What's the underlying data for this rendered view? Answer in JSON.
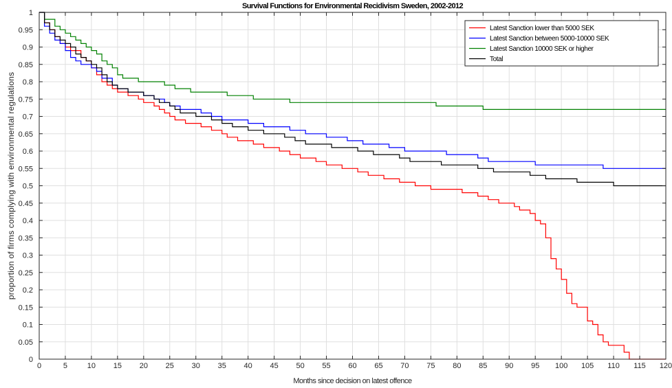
{
  "chart_data": {
    "type": "line",
    "title": "Survival Functions for Environmental Recidivism Sweden, 2002-2012",
    "xlabel": "Months since decision on latest offence",
    "ylabel": "proportion of firms complying with environmental regulations",
    "xlim": [
      0,
      120
    ],
    "ylim": [
      0,
      1
    ],
    "xticks": [
      "0",
      "5",
      "10",
      "15",
      "20",
      "25",
      "30",
      "35",
      "40",
      "45",
      "50",
      "55",
      "60",
      "65",
      "70",
      "75",
      "80",
      "85",
      "90",
      "95",
      "100",
      "105",
      "110",
      "115",
      "120"
    ],
    "yticks": [
      "0",
      "0.05",
      "0.1",
      "0.15",
      "0.2",
      "0.25",
      "0.3",
      "0.35",
      "0.4",
      "0.45",
      "0.5",
      "0.55",
      "0.6",
      "0.65",
      "0.7",
      "0.75",
      "0.8",
      "0.85",
      "0.9",
      "0.95",
      "1"
    ],
    "grid": true,
    "legend_position": "top-right",
    "series": [
      {
        "name": "Latest Sanction lower than 5000 SEK",
        "color": "#ff0000",
        "step": true,
        "points": [
          [
            0,
            1
          ],
          [
            1,
            0.97
          ],
          [
            2,
            0.95
          ],
          [
            3,
            0.93
          ],
          [
            4,
            0.91
          ],
          [
            5,
            0.9
          ],
          [
            6,
            0.89
          ],
          [
            8,
            0.87
          ],
          [
            9,
            0.86
          ],
          [
            10,
            0.84
          ],
          [
            11,
            0.82
          ],
          [
            12,
            0.8
          ],
          [
            13,
            0.79
          ],
          [
            14,
            0.78
          ],
          [
            15,
            0.77
          ],
          [
            17,
            0.76
          ],
          [
            19,
            0.75
          ],
          [
            20,
            0.74
          ],
          [
            22,
            0.73
          ],
          [
            23,
            0.72
          ],
          [
            24,
            0.71
          ],
          [
            25,
            0.7
          ],
          [
            26,
            0.69
          ],
          [
            28,
            0.68
          ],
          [
            31,
            0.67
          ],
          [
            33,
            0.66
          ],
          [
            35,
            0.65
          ],
          [
            36,
            0.64
          ],
          [
            38,
            0.63
          ],
          [
            41,
            0.62
          ],
          [
            43,
            0.61
          ],
          [
            46,
            0.6
          ],
          [
            48,
            0.59
          ],
          [
            50,
            0.58
          ],
          [
            53,
            0.57
          ],
          [
            55,
            0.56
          ],
          [
            58,
            0.55
          ],
          [
            61,
            0.54
          ],
          [
            63,
            0.53
          ],
          [
            66,
            0.52
          ],
          [
            69,
            0.51
          ],
          [
            72,
            0.5
          ],
          [
            75,
            0.49
          ],
          [
            81,
            0.48
          ],
          [
            84,
            0.47
          ],
          [
            86,
            0.46
          ],
          [
            88,
            0.45
          ],
          [
            91,
            0.44
          ],
          [
            92,
            0.43
          ],
          [
            94,
            0.42
          ],
          [
            95,
            0.4
          ],
          [
            96,
            0.39
          ],
          [
            97,
            0.35
          ],
          [
            98,
            0.29
          ],
          [
            99,
            0.26
          ],
          [
            100,
            0.23
          ],
          [
            101,
            0.19
          ],
          [
            102,
            0.16
          ],
          [
            103,
            0.15
          ],
          [
            105,
            0.11
          ],
          [
            106,
            0.1
          ],
          [
            107,
            0.07
          ],
          [
            108,
            0.05
          ],
          [
            109,
            0.04
          ],
          [
            112,
            0.02
          ],
          [
            113,
            0
          ],
          [
            120,
            0
          ]
        ]
      },
      {
        "name": "Latest Sanction between 5000-10000 SEK",
        "color": "#0000ff",
        "step": true,
        "points": [
          [
            0,
            1
          ],
          [
            1,
            0.96
          ],
          [
            2,
            0.94
          ],
          [
            3,
            0.92
          ],
          [
            4,
            0.91
          ],
          [
            5,
            0.89
          ],
          [
            6,
            0.87
          ],
          [
            7,
            0.86
          ],
          [
            8,
            0.85
          ],
          [
            10,
            0.84
          ],
          [
            11,
            0.83
          ],
          [
            12,
            0.81
          ],
          [
            14,
            0.79
          ],
          [
            15,
            0.78
          ],
          [
            17,
            0.77
          ],
          [
            20,
            0.76
          ],
          [
            22,
            0.75
          ],
          [
            24,
            0.74
          ],
          [
            25,
            0.73
          ],
          [
            27,
            0.72
          ],
          [
            31,
            0.71
          ],
          [
            33,
            0.7
          ],
          [
            35,
            0.69
          ],
          [
            40,
            0.68
          ],
          [
            43,
            0.67
          ],
          [
            48,
            0.66
          ],
          [
            51,
            0.65
          ],
          [
            55,
            0.64
          ],
          [
            59,
            0.63
          ],
          [
            62,
            0.62
          ],
          [
            67,
            0.61
          ],
          [
            70,
            0.6
          ],
          [
            78,
            0.59
          ],
          [
            84,
            0.58
          ],
          [
            86,
            0.57
          ],
          [
            95,
            0.56
          ],
          [
            108,
            0.55
          ],
          [
            120,
            0.55
          ]
        ]
      },
      {
        "name": "Latest Sanction 10000 SEK or higher",
        "color": "#008000",
        "step": true,
        "points": [
          [
            0,
            1
          ],
          [
            1,
            0.98
          ],
          [
            2,
            0.98
          ],
          [
            3,
            0.96
          ],
          [
            4,
            0.95
          ],
          [
            5,
            0.94
          ],
          [
            6,
            0.93
          ],
          [
            7,
            0.92
          ],
          [
            8,
            0.91
          ],
          [
            9,
            0.9
          ],
          [
            10,
            0.89
          ],
          [
            11,
            0.88
          ],
          [
            12,
            0.86
          ],
          [
            13,
            0.85
          ],
          [
            14,
            0.84
          ],
          [
            15,
            0.82
          ],
          [
            16,
            0.81
          ],
          [
            18,
            0.81
          ],
          [
            19,
            0.8
          ],
          [
            23,
            0.8
          ],
          [
            24,
            0.79
          ],
          [
            26,
            0.78
          ],
          [
            28,
            0.78
          ],
          [
            29,
            0.77
          ],
          [
            35,
            0.77
          ],
          [
            36,
            0.76
          ],
          [
            40,
            0.76
          ],
          [
            41,
            0.75
          ],
          [
            47,
            0.75
          ],
          [
            48,
            0.74
          ],
          [
            75,
            0.74
          ],
          [
            76,
            0.73
          ],
          [
            84,
            0.73
          ],
          [
            85,
            0.72
          ],
          [
            120,
            0.72
          ]
        ]
      },
      {
        "name": "Total",
        "color": "#000000",
        "step": true,
        "points": [
          [
            0,
            1
          ],
          [
            1,
            0.97
          ],
          [
            2,
            0.95
          ],
          [
            3,
            0.93
          ],
          [
            4,
            0.92
          ],
          [
            5,
            0.91
          ],
          [
            6,
            0.9
          ],
          [
            7,
            0.88
          ],
          [
            8,
            0.87
          ],
          [
            9,
            0.86
          ],
          [
            10,
            0.85
          ],
          [
            11,
            0.84
          ],
          [
            12,
            0.82
          ],
          [
            13,
            0.8
          ],
          [
            14,
            0.79
          ],
          [
            15,
            0.78
          ],
          [
            17,
            0.77
          ],
          [
            19,
            0.77
          ],
          [
            20,
            0.76
          ],
          [
            22,
            0.75
          ],
          [
            23,
            0.74
          ],
          [
            25,
            0.73
          ],
          [
            26,
            0.72
          ],
          [
            27,
            0.71
          ],
          [
            29,
            0.71
          ],
          [
            30,
            0.7
          ],
          [
            32,
            0.7
          ],
          [
            33,
            0.69
          ],
          [
            35,
            0.68
          ],
          [
            37,
            0.67
          ],
          [
            40,
            0.66
          ],
          [
            43,
            0.65
          ],
          [
            47,
            0.64
          ],
          [
            49,
            0.63
          ],
          [
            51,
            0.62
          ],
          [
            56,
            0.61
          ],
          [
            61,
            0.6
          ],
          [
            64,
            0.59
          ],
          [
            69,
            0.58
          ],
          [
            71,
            0.57
          ],
          [
            77,
            0.56
          ],
          [
            84,
            0.55
          ],
          [
            87,
            0.54
          ],
          [
            94,
            0.53
          ],
          [
            97,
            0.52
          ],
          [
            103,
            0.51
          ],
          [
            110,
            0.5
          ],
          [
            120,
            0.5
          ]
        ]
      }
    ]
  }
}
